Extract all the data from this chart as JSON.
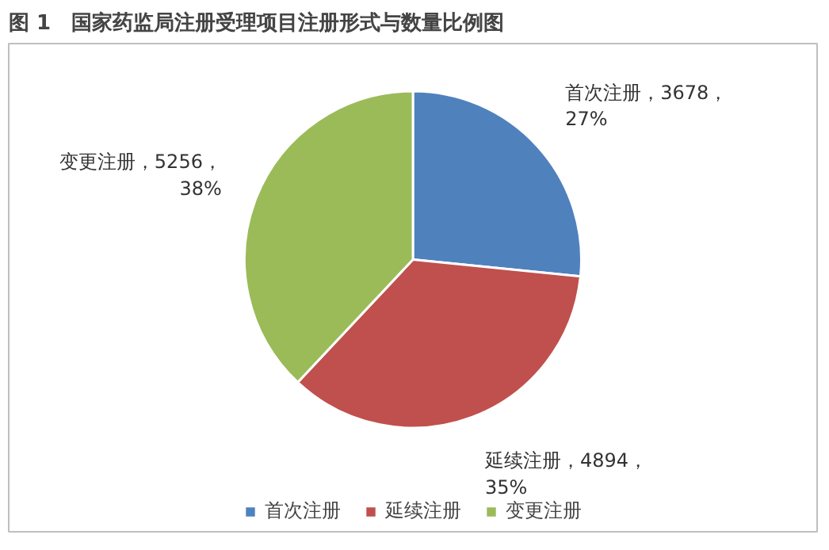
{
  "chart_data": {
    "type": "pie",
    "title": "图 1　国家药监局注册受理项目注册形式与数量比例图",
    "categories": [
      "首次注册",
      "延续注册",
      "变更注册"
    ],
    "values": [
      3678,
      4894,
      5256
    ],
    "colors": [
      "#4f81bd",
      "#c0504d",
      "#9bbb59"
    ],
    "value_labels": [
      "首次注册，3678，\n27%",
      "延续注册，4894，\n35%",
      "变更注册，5256，\n38%"
    ],
    "legend": "bottom"
  }
}
